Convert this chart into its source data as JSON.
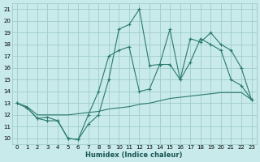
{
  "xlabel": "Humidex (Indice chaleur)",
  "xlim": [
    -0.5,
    23.5
  ],
  "ylim": [
    9.5,
    21.5
  ],
  "yticks": [
    10,
    11,
    12,
    13,
    14,
    15,
    16,
    17,
    18,
    19,
    20,
    21
  ],
  "xticks": [
    0,
    1,
    2,
    3,
    4,
    5,
    6,
    7,
    8,
    9,
    10,
    11,
    12,
    13,
    14,
    15,
    16,
    17,
    18,
    19,
    20,
    21,
    22,
    23
  ],
  "bg_color": "#c8eaea",
  "grid_color": "#a0cccc",
  "line_color": "#2a7a6a",
  "line1_x": [
    0,
    1,
    2,
    3,
    4,
    5,
    6,
    7,
    8,
    9,
    10,
    11,
    12,
    13,
    14,
    15,
    16,
    17,
    18,
    19,
    20,
    21,
    22,
    23
  ],
  "line1_y": [
    13.0,
    12.6,
    11.7,
    11.5,
    11.5,
    10.0,
    9.9,
    11.2,
    12.0,
    15.0,
    19.3,
    19.7,
    21.0,
    16.2,
    16.3,
    19.3,
    15.0,
    16.5,
    18.5,
    18.0,
    17.5,
    15.0,
    14.5,
    13.3
  ],
  "line2_x": [
    0,
    1,
    2,
    3,
    4,
    5,
    6,
    7,
    8,
    9,
    10,
    11,
    12,
    13,
    14,
    15,
    16,
    17,
    18,
    19,
    20,
    21,
    22,
    23
  ],
  "line2_y": [
    13.0,
    12.6,
    11.7,
    11.8,
    11.5,
    10.0,
    9.9,
    12.0,
    14.0,
    17.0,
    17.5,
    17.8,
    14.0,
    14.2,
    16.3,
    16.3,
    15.0,
    18.5,
    18.2,
    19.0,
    18.0,
    17.5,
    16.0,
    13.3
  ],
  "line3_x": [
    0,
    1,
    2,
    3,
    4,
    5,
    6,
    7,
    8,
    9,
    10,
    11,
    12,
    13,
    14,
    15,
    16,
    17,
    18,
    19,
    20,
    21,
    22,
    23
  ],
  "line3_y": [
    13.0,
    12.7,
    12.0,
    12.0,
    12.0,
    12.0,
    12.1,
    12.2,
    12.3,
    12.5,
    12.6,
    12.7,
    12.9,
    13.0,
    13.2,
    13.4,
    13.5,
    13.6,
    13.7,
    13.8,
    13.9,
    13.9,
    13.9,
    13.3
  ]
}
